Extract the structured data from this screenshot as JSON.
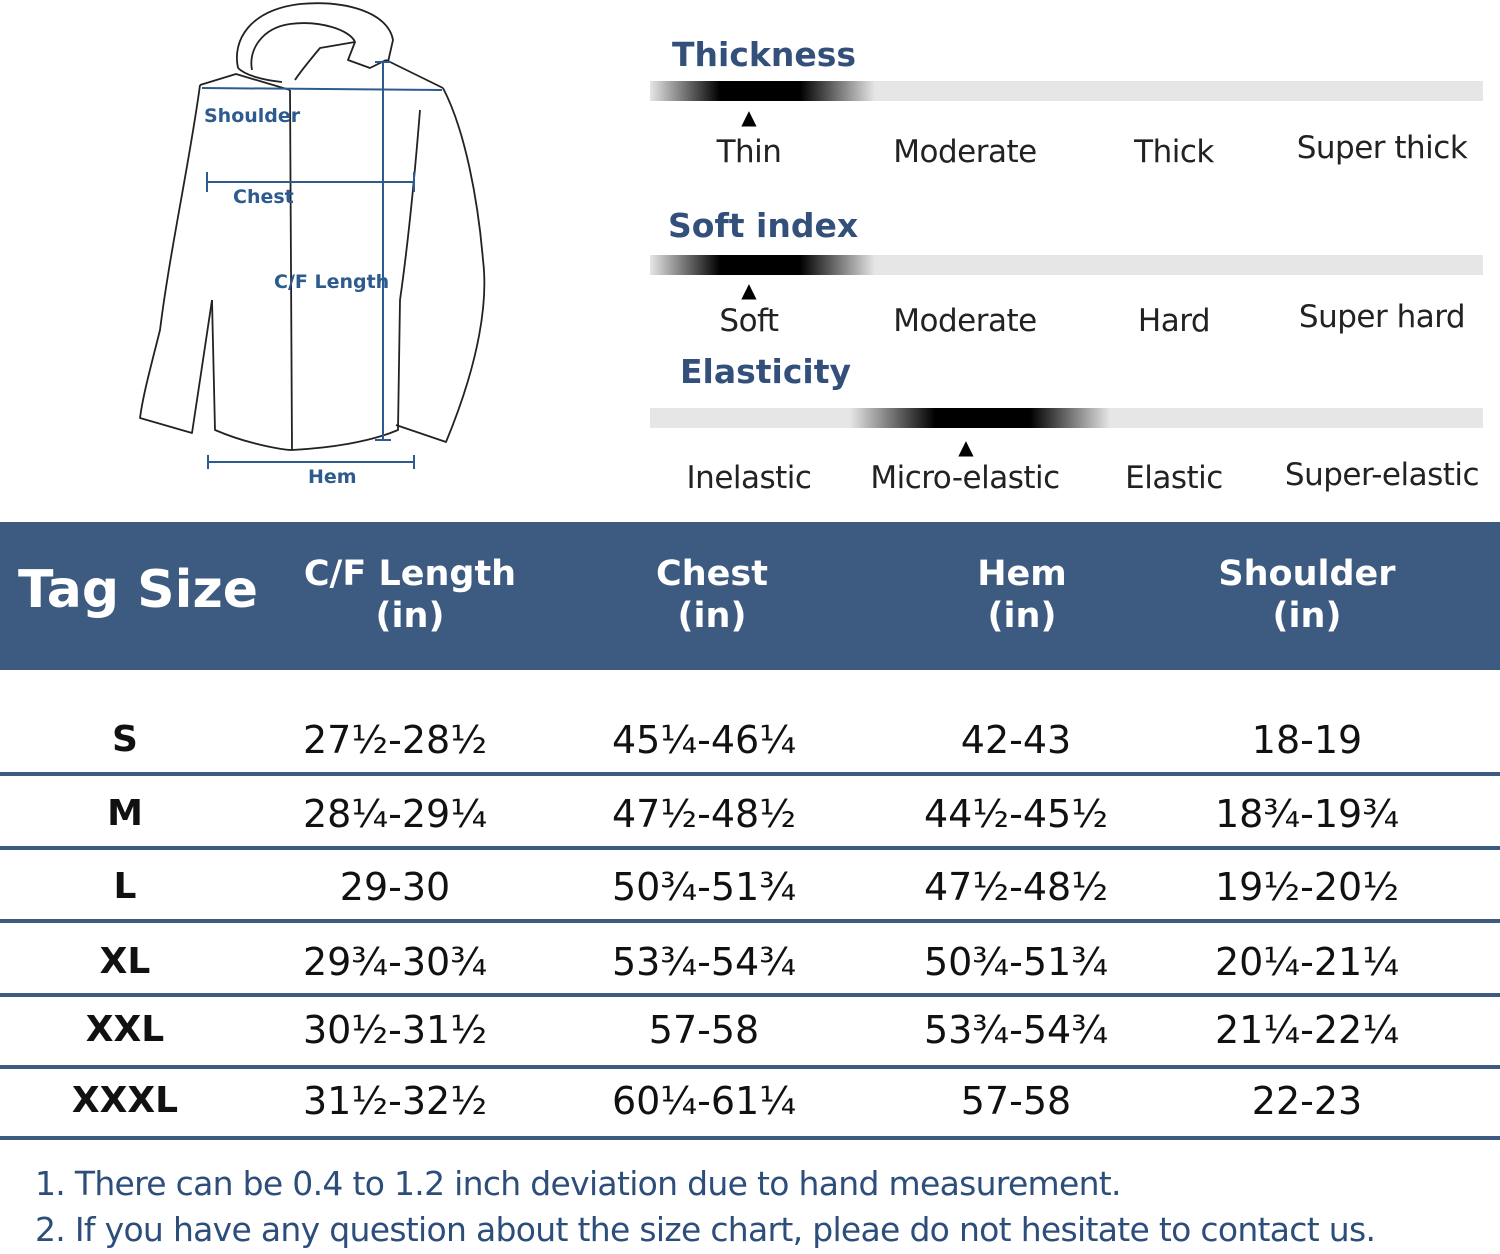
{
  "diagram": {
    "labels": {
      "shoulder": "Shoulder",
      "chest": "Chest",
      "cf_length": "C/F Length",
      "hem": "Hem"
    },
    "line_color": "#2d5b8f"
  },
  "scales": [
    {
      "title": "Thickness",
      "options": [
        "Thin",
        "Moderate",
        "Thick",
        "Super thick"
      ],
      "selected_index": 0
    },
    {
      "title": "Soft index",
      "options": [
        "Soft",
        "Moderate",
        "Hard",
        "Super hard"
      ],
      "selected_index": 0
    },
    {
      "title": "Elasticity",
      "options": [
        "Inelastic",
        "Micro-elastic",
        "Elastic",
        "Super-elastic"
      ],
      "selected_index": 1
    }
  ],
  "marker_glyph": "▲",
  "table": {
    "header_color": "#3d5a80",
    "tag_size_label": "Tag Size",
    "columns": [
      {
        "name": "C/F Length",
        "unit": "(in)"
      },
      {
        "name": "Chest",
        "unit": "(in)"
      },
      {
        "name": "Hem",
        "unit": "(in)"
      },
      {
        "name": "Shoulder",
        "unit": "(in)"
      }
    ],
    "rows": [
      {
        "size": "S",
        "values": [
          "27½-28½",
          "45¼-46¼",
          "42-43",
          "18-19"
        ]
      },
      {
        "size": "M",
        "values": [
          "28¼-29¼",
          "47½-48½",
          "44½-45½",
          "18¾-19¾"
        ]
      },
      {
        "size": "L",
        "values": [
          "29-30",
          "50¾-51¾",
          "47½-48½",
          "19½-20½"
        ]
      },
      {
        "size": "XL",
        "values": [
          "29¾-30¾",
          "53¾-54¾",
          "50¾-51¾",
          "20¼-21¼"
        ]
      },
      {
        "size": "XXL",
        "values": [
          "30½-31½",
          "57-58",
          "53¾-54¾",
          "21¼-22¼"
        ]
      },
      {
        "size": "XXXL",
        "values": [
          "31½-32½",
          "60¼-61¼",
          "57-58",
          "22-23"
        ]
      }
    ]
  },
  "notes": [
    "1. There can be 0.4 to 1.2 inch deviation due to hand measurement.",
    "2. If you have any question about the size chart, pleae do not hesitate to contact us."
  ]
}
